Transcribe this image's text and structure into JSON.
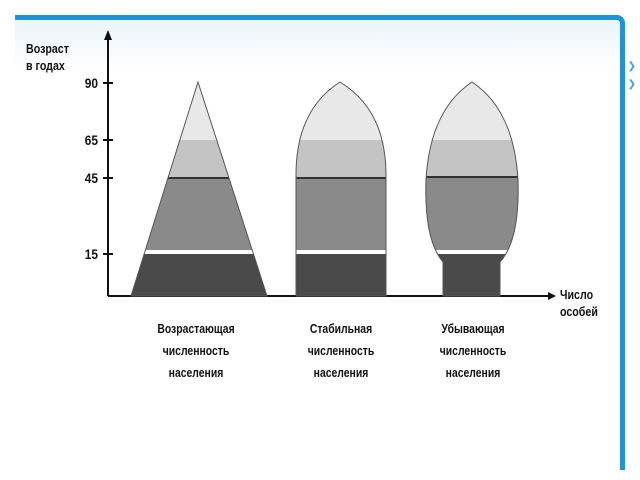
{
  "axes": {
    "y_label_line1": "Возраст",
    "y_label_line2": "в годах",
    "x_label_line1": "Число",
    "x_label_line2": "особей",
    "y_ticks": [
      "90",
      "65",
      "45",
      "15"
    ]
  },
  "pyramids": [
    {
      "lines": [
        "Возрастающая",
        "численность",
        "населения"
      ]
    },
    {
      "lines": [
        "Стабильная",
        "численность",
        "населения"
      ]
    },
    {
      "lines": [
        "Убывающая",
        "численность",
        "населения"
      ]
    }
  ],
  "colors": {
    "frame": "#1e93d8",
    "band_0_15": "#4a4a4a",
    "band_15_45": "#8a8a8a",
    "band_45_65": "#c4c4c4",
    "band_65_90": "#e8e8e8"
  }
}
